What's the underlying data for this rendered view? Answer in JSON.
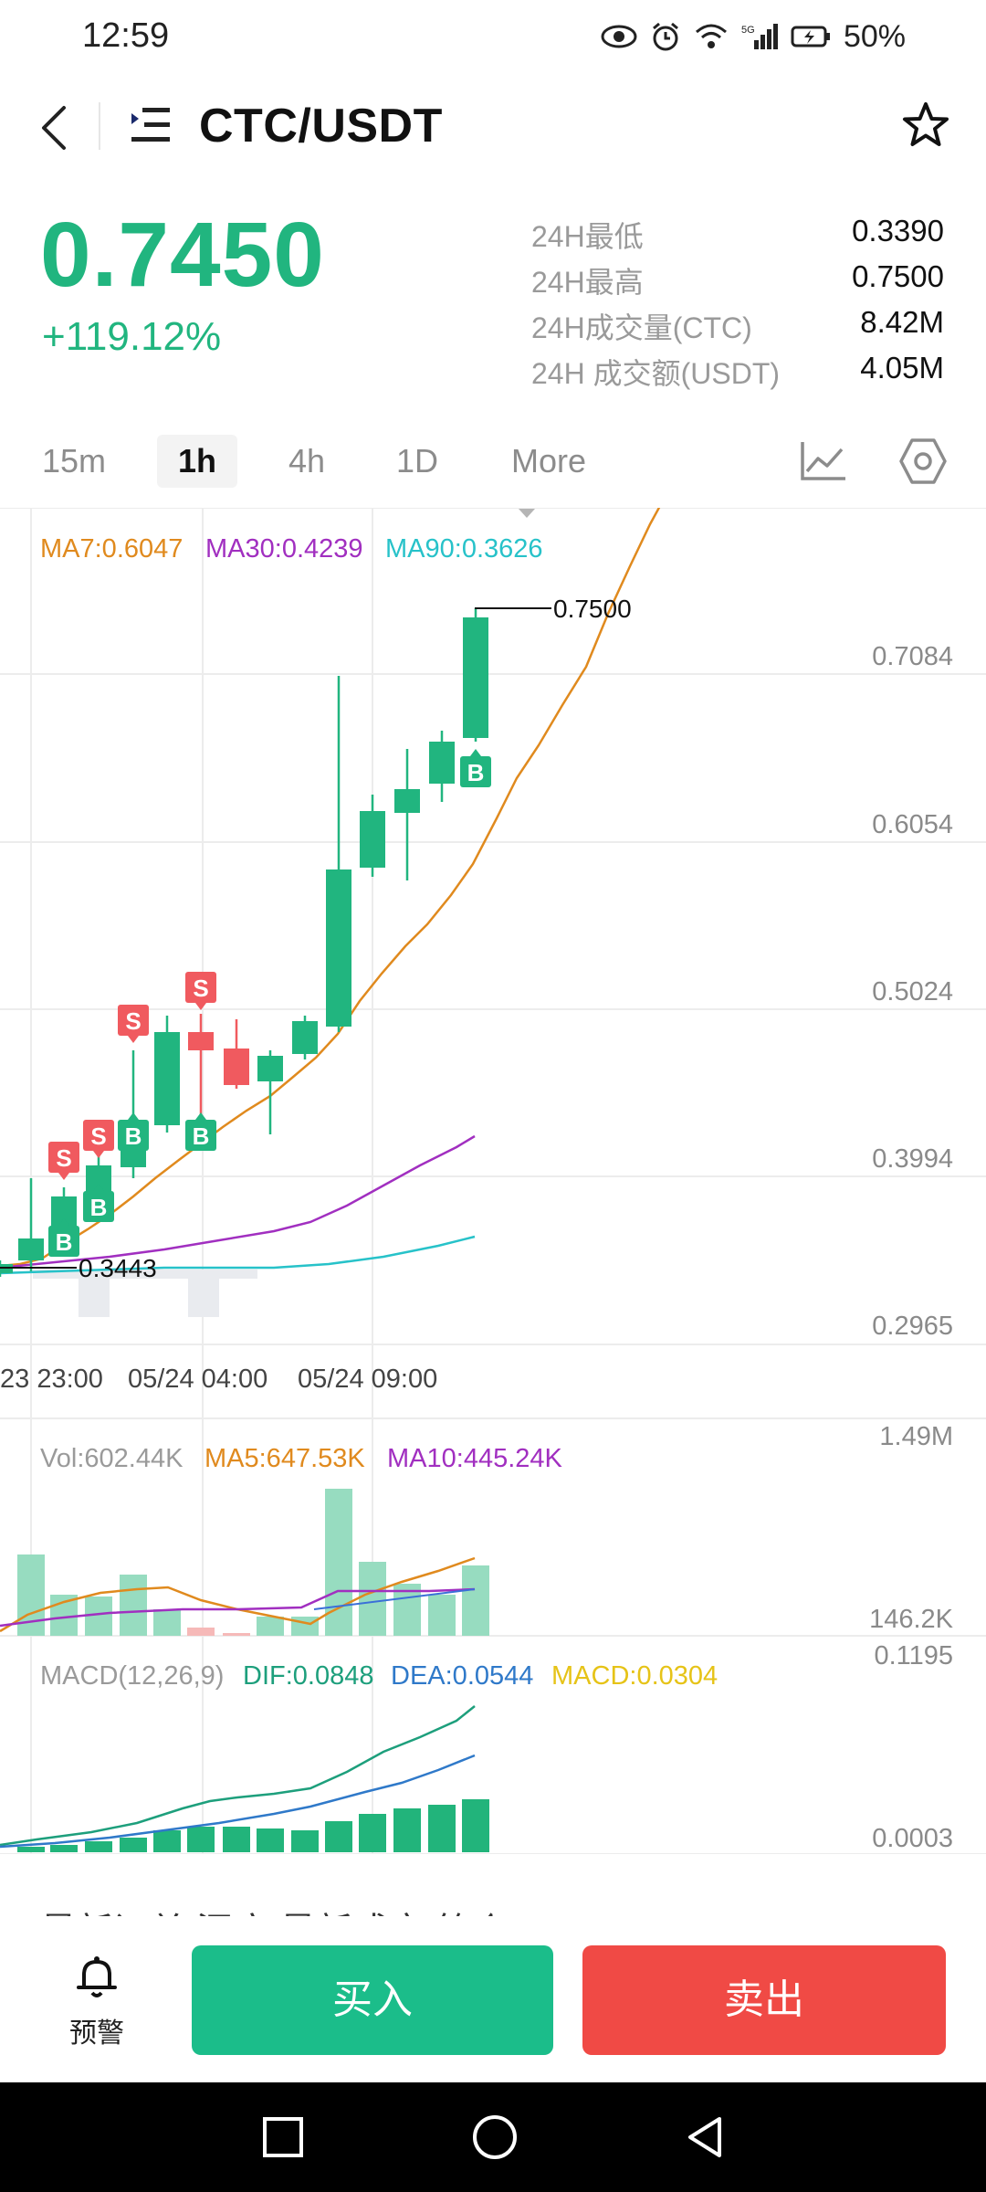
{
  "status_bar": {
    "time": "12:59",
    "battery": "50%"
  },
  "header": {
    "pair": "CTC/USDT"
  },
  "ticker": {
    "last_price": "0.7450",
    "change": "+119.12%",
    "stats": [
      {
        "label": "24H最低",
        "value": "0.3390"
      },
      {
        "label": "24H最高",
        "value": "0.7500"
      },
      {
        "label": "24H成交量(CTC)",
        "value": "8.42M"
      },
      {
        "label": "24H 成交额(USDT)",
        "value": "4.05M"
      }
    ]
  },
  "timeframes": {
    "t15m": "15m",
    "t1h": "1h",
    "t4h": "4h",
    "t1d": "1D",
    "more": "More",
    "selected": "1h"
  },
  "legend": {
    "ma7": "MA7:0.6047",
    "ma30": "MA30:0.4239",
    "ma90": "MA90:0.3626"
  },
  "price_axis": [
    "0.7084",
    "0.6054",
    "0.5024",
    "0.3994",
    "0.2965"
  ],
  "time_axis": [
    "23 23:00",
    "05/24 04:00",
    "05/24 09:00"
  ],
  "markers": {
    "high": "0.7500",
    "low": "0.3443",
    "buy": "B",
    "sell": "S"
  },
  "volume": {
    "vol": "Vol:602.44K",
    "ma5": "MA5:647.53K",
    "ma10": "MA10:445.24K",
    "axis_top": "1.49M",
    "axis_bottom": "146.2K"
  },
  "macd": {
    "label": "MACD(12,26,9)",
    "dif": "DIF:0.0848",
    "dea": "DEA:0.0544",
    "macd": "MACD:0.0304",
    "axis_top": "0.1195",
    "axis_bottom": "0.0003"
  },
  "colors": {
    "up": "#21b57f",
    "down": "#f05a5f",
    "ma7": "#e08a1e",
    "ma30": "#a12fc0",
    "ma90": "#27c2c9"
  },
  "bottom": {
    "alert_label": "预警",
    "buy_label": "买入",
    "sell_label": "卖出",
    "partial_text": "最新订单 深度 最新成交 简介"
  }
}
